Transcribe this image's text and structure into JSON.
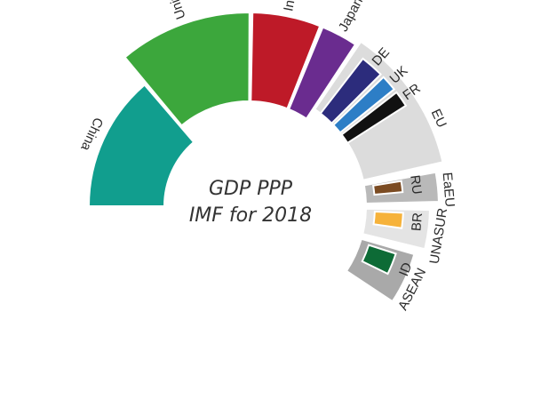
{
  "chart_data": {
    "type": "pie",
    "title_line1": "GDP PPP",
    "title_line2": "IMF for 2018",
    "countries": [
      {
        "label": "China",
        "value": 25.3,
        "color": "#119e8e"
      },
      {
        "label": "United States",
        "value": 20.5,
        "color": "#3ca73c"
      },
      {
        "label": "India",
        "value": 10.5,
        "color": "#be1a28"
      },
      {
        "label": "Japan",
        "value": 5.6,
        "color": "#6a2c8f"
      },
      {
        "label": "DE",
        "value": 4.4,
        "color": "#2c2c7c"
      },
      {
        "label": "UK",
        "value": 3.0,
        "color": "#2d7ec6"
      },
      {
        "label": "FR",
        "value": 3.0,
        "color": "#111111"
      },
      {
        "label": "RU",
        "value": 4.2,
        "color": "#7b4b22"
      },
      {
        "label": "BR",
        "value": 3.4,
        "color": "#f6b23a"
      },
      {
        "label": "ID",
        "value": 3.4,
        "color": "#0d6b36"
      }
    ],
    "groups": [
      {
        "label": "EU",
        "value": 22.0,
        "color": "#dcdcdc",
        "members": [
          "DE",
          "UK",
          "FR"
        ]
      },
      {
        "label": "EaEU",
        "value": 4.6,
        "color": "#b9b9b9",
        "members": [
          "RU"
        ]
      },
      {
        "label": "UNASUR",
        "value": 6.4,
        "color": "#e4e4e4",
        "members": [
          "BR"
        ]
      },
      {
        "label": "ASEAN",
        "value": 8.9,
        "color": "#a9a9a9",
        "members": [
          "ID"
        ]
      }
    ]
  }
}
